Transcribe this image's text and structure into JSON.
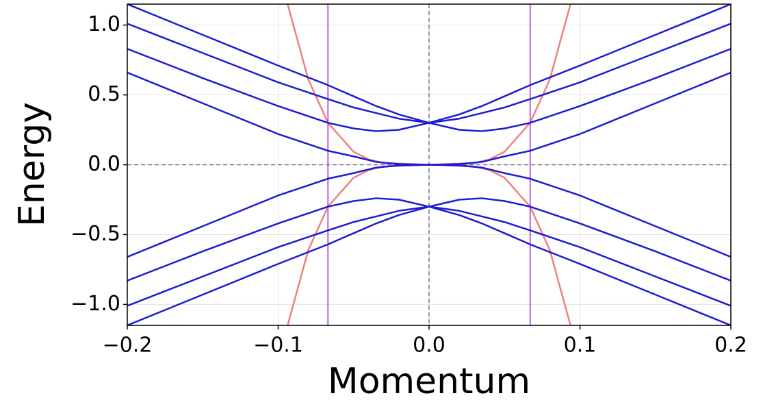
{
  "chart_data": {
    "type": "line",
    "xlabel": "Momentum",
    "ylabel": "Energy",
    "xlim": [
      -0.2,
      0.2
    ],
    "ylim": [
      -1.15,
      1.15
    ],
    "xticks": [
      {
        "value": -0.2,
        "label": "−0.2"
      },
      {
        "value": -0.1,
        "label": "−0.1"
      },
      {
        "value": 0,
        "label": "0.0"
      },
      0.1,
      0.2
    ],
    "yticks": [
      {
        "value": -1,
        "label": "−1.0"
      },
      {
        "value": -0.5,
        "label": "−0.5"
      },
      {
        "value": 0,
        "label": "0.0"
      },
      0.5,
      {
        "value": 1,
        "label": "1.0"
      }
    ],
    "grid": true,
    "origin_lines": true,
    "vlines": [
      -0.067,
      0.067
    ],
    "vline_color": "#b450d8",
    "series": [
      {
        "color": "#f08080",
        "x": [
          -0.094,
          -0.08,
          -0.067,
          -0.05,
          -0.04,
          -0.03,
          0,
          0.03,
          0.04,
          0.05,
          0.067,
          0.08,
          0.094
        ],
        "values": [
          1.16,
          0.61,
          0.3,
          0.093,
          0.038,
          0.012,
          0,
          0.012,
          0.038,
          0.093,
          0.3,
          0.61,
          1.16
        ]
      },
      {
        "color": "#f08080",
        "x": [
          -0.094,
          -0.08,
          -0.067,
          -0.05,
          -0.04,
          -0.03,
          0,
          0.03,
          0.04,
          0.05,
          0.067,
          0.08,
          0.094
        ],
        "values": [
          -1.16,
          -0.61,
          -0.3,
          -0.093,
          -0.038,
          -0.012,
          0,
          -0.012,
          -0.038,
          -0.093,
          -0.3,
          -0.61,
          -1.16
        ]
      },
      {
        "color": "#1c1cd4",
        "x": [
          -0.2,
          -0.15,
          -0.1,
          -0.067,
          -0.05,
          -0.035,
          -0.02,
          0,
          0.02,
          0.035,
          0.05,
          0.067,
          0.1,
          0.15,
          0.2
        ],
        "values": [
          1.15,
          0.93,
          0.71,
          0.57,
          0.49,
          0.42,
          0.36,
          0.3,
          0.36,
          0.42,
          0.49,
          0.57,
          0.71,
          0.93,
          1.15
        ]
      },
      {
        "color": "#1c1cd4",
        "x": [
          -0.2,
          -0.15,
          -0.1,
          -0.067,
          -0.05,
          -0.035,
          -0.02,
          0,
          0.02,
          0.035,
          0.05,
          0.067,
          0.1,
          0.15,
          0.2
        ],
        "values": [
          1.01,
          0.8,
          0.59,
          0.47,
          0.41,
          0.37,
          0.33,
          0.3,
          0.33,
          0.37,
          0.41,
          0.47,
          0.59,
          0.8,
          1.01
        ]
      },
      {
        "color": "#1c1cd4",
        "x": [
          -0.2,
          -0.15,
          -0.1,
          -0.067,
          -0.05,
          -0.035,
          -0.02,
          0,
          0.02,
          0.035,
          0.05,
          0.067,
          0.1,
          0.15,
          0.2
        ],
        "values": [
          0.83,
          0.62,
          0.42,
          0.3,
          0.26,
          0.24,
          0.25,
          0.3,
          0.25,
          0.24,
          0.26,
          0.3,
          0.42,
          0.62,
          0.83
        ]
      },
      {
        "color": "#1c1cd4",
        "x": [
          -0.2,
          -0.15,
          -0.1,
          -0.067,
          -0.05,
          -0.035,
          -0.02,
          0,
          0.02,
          0.035,
          0.05,
          0.067,
          0.1,
          0.15,
          0.2
        ],
        "values": [
          0.66,
          0.44,
          0.22,
          0.1,
          0.06,
          0.02,
          0.005,
          0,
          0.005,
          0.02,
          0.06,
          0.1,
          0.22,
          0.44,
          0.66
        ]
      },
      {
        "color": "#1c1cd4",
        "x": [
          -0.2,
          -0.15,
          -0.1,
          -0.067,
          -0.05,
          -0.035,
          -0.02,
          0,
          0.02,
          0.035,
          0.05,
          0.067,
          0.1,
          0.15,
          0.2
        ],
        "values": [
          -0.66,
          -0.44,
          -0.22,
          -0.1,
          -0.06,
          -0.02,
          -0.005,
          0,
          -0.005,
          -0.02,
          -0.06,
          -0.1,
          -0.22,
          -0.44,
          -0.66
        ]
      },
      {
        "color": "#1c1cd4",
        "x": [
          -0.2,
          -0.15,
          -0.1,
          -0.067,
          -0.05,
          -0.035,
          -0.02,
          0,
          0.02,
          0.035,
          0.05,
          0.067,
          0.1,
          0.15,
          0.2
        ],
        "values": [
          -0.83,
          -0.62,
          -0.42,
          -0.3,
          -0.26,
          -0.24,
          -0.25,
          -0.3,
          -0.25,
          -0.24,
          -0.26,
          -0.3,
          -0.42,
          -0.62,
          -0.83
        ]
      },
      {
        "color": "#1c1cd4",
        "x": [
          -0.2,
          -0.15,
          -0.1,
          -0.067,
          -0.05,
          -0.035,
          -0.02,
          0,
          0.02,
          0.035,
          0.05,
          0.067,
          0.1,
          0.15,
          0.2
        ],
        "values": [
          -1.01,
          -0.8,
          -0.59,
          -0.47,
          -0.41,
          -0.37,
          -0.33,
          -0.3,
          -0.33,
          -0.37,
          -0.41,
          -0.47,
          -0.59,
          -0.8,
          -1.01
        ]
      },
      {
        "color": "#1c1cd4",
        "x": [
          -0.2,
          -0.15,
          -0.1,
          -0.067,
          -0.05,
          -0.035,
          -0.02,
          0,
          0.02,
          0.035,
          0.05,
          0.067,
          0.1,
          0.15,
          0.2
        ],
        "values": [
          -1.15,
          -0.93,
          -0.71,
          -0.57,
          -0.49,
          -0.42,
          -0.36,
          -0.3,
          -0.36,
          -0.42,
          -0.49,
          -0.57,
          -0.71,
          -0.93,
          -1.15
        ]
      }
    ]
  }
}
